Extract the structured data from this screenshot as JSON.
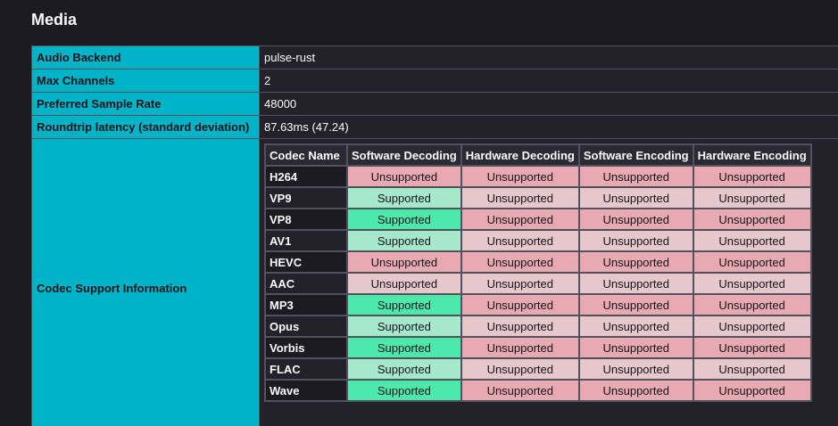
{
  "media": {
    "title": "Media",
    "rows": [
      {
        "label": "Audio Backend",
        "value": "pulse-rust"
      },
      {
        "label": "Max Channels",
        "value": "2"
      },
      {
        "label": "Preferred Sample Rate",
        "value": "48000"
      },
      {
        "label": "Roundtrip latency (standard deviation)",
        "value": "87.63ms (47.24)"
      }
    ],
    "codec_support": {
      "label": "Codec Support Information",
      "headers": [
        "Codec Name",
        "Software Decoding",
        "Hardware Decoding",
        "Software Encoding",
        "Hardware Encoding"
      ],
      "rows": [
        [
          "H264",
          "Unsupported",
          "Unsupported",
          "Unsupported",
          "Unsupported"
        ],
        [
          "VP9",
          "Supported",
          "Unsupported",
          "Unsupported",
          "Unsupported"
        ],
        [
          "VP8",
          "Supported",
          "Unsupported",
          "Unsupported",
          "Unsupported"
        ],
        [
          "AV1",
          "Supported",
          "Unsupported",
          "Unsupported",
          "Unsupported"
        ],
        [
          "HEVC",
          "Unsupported",
          "Unsupported",
          "Unsupported",
          "Unsupported"
        ],
        [
          "AAC",
          "Unsupported",
          "Unsupported",
          "Unsupported",
          "Unsupported"
        ],
        [
          "MP3",
          "Supported",
          "Unsupported",
          "Unsupported",
          "Unsupported"
        ],
        [
          "Opus",
          "Supported",
          "Unsupported",
          "Unsupported",
          "Unsupported"
        ],
        [
          "Vorbis",
          "Supported",
          "Unsupported",
          "Unsupported",
          "Unsupported"
        ],
        [
          "FLAC",
          "Supported",
          "Unsupported",
          "Unsupported",
          "Unsupported"
        ],
        [
          "Wave",
          "Supported",
          "Unsupported",
          "Unsupported",
          "Unsupported"
        ]
      ]
    }
  }
}
